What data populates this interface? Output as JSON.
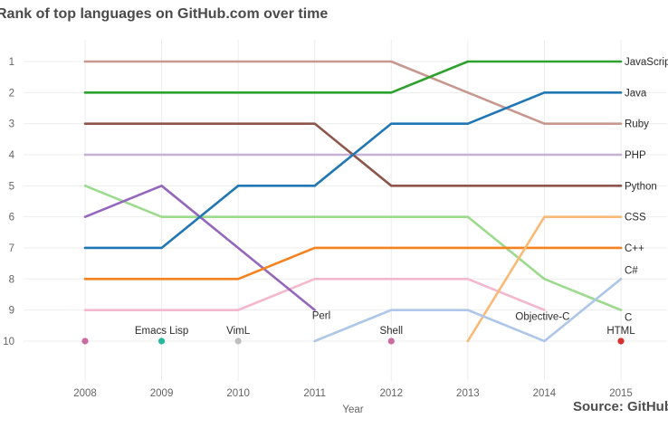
{
  "chart_data": {
    "type": "line",
    "subtype": "bump-rank-chart",
    "title": "Rank of top languages on GitHub.com over time",
    "xlabel": "Year",
    "source": "Source: GitHub",
    "x": [
      2008,
      2009,
      2010,
      2011,
      2012,
      2013,
      2014,
      2015
    ],
    "y_axis": {
      "ticks": [
        1,
        2,
        3,
        4,
        5,
        6,
        7,
        8,
        9,
        10
      ],
      "inverted": true,
      "range": [
        1,
        10
      ]
    },
    "grid": true,
    "legend_position": "right-at-line-ends",
    "colors": {
      "grid": "#ededed",
      "tick_text": "#646464",
      "label_text": "#2b2b2b",
      "title_text": "#4a4a4a"
    },
    "series": [
      {
        "name": "Ruby",
        "color": "#c6988f",
        "ranks": [
          1,
          1,
          1,
          1,
          1,
          2,
          3,
          3
        ],
        "end_label": "Ruby"
      },
      {
        "name": "PHP",
        "color": "#c7b2d6",
        "ranks": [
          4,
          4,
          4,
          4,
          4,
          4,
          4,
          4
        ],
        "end_label": "PHP"
      },
      {
        "name": "Python",
        "color": "#8c564b",
        "ranks": [
          3,
          3,
          3,
          3,
          5,
          5,
          5,
          5
        ],
        "end_label": "Python"
      },
      {
        "name": "C",
        "color": "#9cdb8d",
        "ranks": [
          5,
          6,
          6,
          6,
          6,
          6,
          8,
          9
        ],
        "end_label": "C",
        "end_label_dy": 8
      },
      {
        "name": "Objective-C",
        "color": "#f4b8ce",
        "ranks": [
          9,
          9,
          9,
          8,
          8,
          8,
          9,
          null
        ],
        "inline_label": {
          "text": "Objective-C",
          "year": 2014,
          "rank": 9,
          "dx": -2,
          "dy": 11,
          "anchor": "middle"
        }
      },
      {
        "name": "Perl",
        "color": "#9467bd",
        "ranks": [
          6,
          5,
          7,
          9,
          null,
          null,
          null,
          null
        ],
        "inline_label": {
          "text": "Perl",
          "year": 2011,
          "rank": 9,
          "dx": -3,
          "dy": 10,
          "anchor": "start"
        }
      },
      {
        "name": "C++",
        "color": "#f5821e",
        "ranks": [
          8,
          8,
          8,
          7,
          7,
          7,
          7,
          7
        ],
        "end_label": "C++"
      },
      {
        "name": "CSS",
        "color": "#f8ba75",
        "ranks": [
          null,
          null,
          null,
          null,
          null,
          10,
          6,
          6
        ],
        "end_label": "CSS"
      },
      {
        "name": "C#",
        "color": "#aec7e8",
        "ranks": [
          null,
          null,
          null,
          10,
          9,
          9,
          10,
          8
        ],
        "end_label": "C#",
        "end_label_dy": -10
      },
      {
        "name": "Java",
        "color": "#2077b4",
        "ranks": [
          7,
          7,
          5,
          5,
          3,
          3,
          2,
          2
        ],
        "end_label": "Java"
      },
      {
        "name": "JavaScript",
        "color": "#2da12d",
        "ranks": [
          2,
          2,
          2,
          2,
          2,
          1,
          1,
          1
        ],
        "end_label": "JavaScript"
      }
    ],
    "dots": [
      {
        "name": "Shell-2008",
        "label": "",
        "color": "#cb6ba2",
        "year": 2008,
        "rank": 10
      },
      {
        "name": "Emacs Lisp",
        "label": "Emacs Lisp",
        "color": "#27b99e",
        "year": 2009,
        "rank": 10
      },
      {
        "name": "VimL",
        "label": "VimL",
        "color": "#bfbfbf",
        "year": 2010,
        "rank": 10
      },
      {
        "name": "Shell",
        "label": "Shell",
        "color": "#cb6ba2",
        "year": 2012,
        "rank": 10
      },
      {
        "name": "HTML",
        "label": "HTML",
        "color": "#d6312e",
        "year": 2015,
        "rank": 10
      }
    ]
  }
}
